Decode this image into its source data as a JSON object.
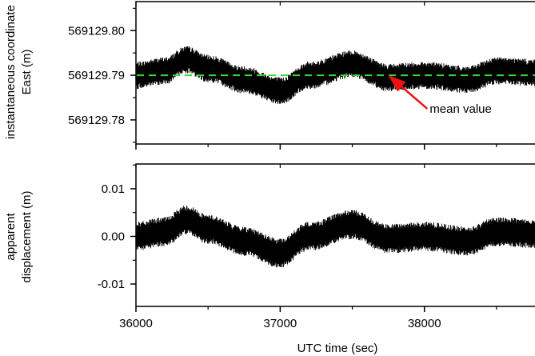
{
  "chart_data": [
    {
      "type": "line",
      "panel": "top",
      "ylabel_lines": [
        "instantaneous coordinate",
        "East (m)"
      ],
      "xlim": [
        36000,
        38800
      ],
      "ylim": [
        569129.7746,
        569129.8065
      ],
      "yticks": [
        569129.78,
        569129.79,
        569129.8
      ],
      "ytick_labels": [
        "569129.78",
        "569129.79",
        "569129.80"
      ],
      "mean_value": 569129.79,
      "mean_line_color": "#33dd33",
      "noise_color": "#000000",
      "annotation": {
        "text": "mean value",
        "arrow_color": "#ee1111",
        "points_to": {
          "x": 37750,
          "y": 569129.79
        },
        "label_at": {
          "x": 38020,
          "y": 569129.7825
        }
      },
      "series_x": [
        36000,
        36200,
        36350,
        36500,
        36750,
        37000,
        37200,
        37500,
        37750,
        38000,
        38300,
        38500,
        38800
      ],
      "series_center": [
        569129.79,
        569129.791,
        569129.7935,
        569129.7915,
        569129.789,
        569129.7865,
        569129.79,
        569129.7925,
        569129.7895,
        569129.79,
        569129.789,
        569129.791,
        569129.7905
      ],
      "band_halfwidth": 0.0028
    },
    {
      "type": "line",
      "panel": "bottom",
      "ylabel_lines": [
        "apparent",
        "displacement (m)"
      ],
      "xlabel": "UTC time (sec)",
      "xlim": [
        36000,
        38800
      ],
      "xticks": [
        36000,
        37000,
        38000
      ],
      "xtick_labels": [
        "36000",
        "37000",
        "38000"
      ],
      "ylim": [
        -0.0147,
        0.0152
      ],
      "yticks": [
        0.01,
        0.0,
        -0.01
      ],
      "ytick_labels": [
        "0.01",
        "0.00",
        "-0.01"
      ],
      "noise_color": "#000000",
      "series_x": [
        36000,
        36200,
        36350,
        36500,
        36750,
        37000,
        37200,
        37500,
        37750,
        38000,
        38300,
        38500,
        38800
      ],
      "series_center": [
        0.0,
        0.001,
        0.0035,
        0.0015,
        -0.001,
        -0.0035,
        0.0,
        0.0025,
        -0.0005,
        0.0,
        -0.001,
        0.001,
        0.0005
      ],
      "band_halfwidth": 0.0028
    }
  ]
}
